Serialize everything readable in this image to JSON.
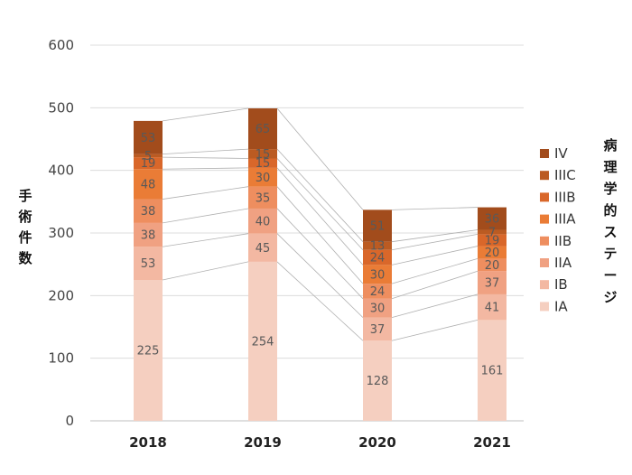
{
  "chart_data": {
    "type": "bar",
    "stacked": true,
    "categories": [
      "2018",
      "2019",
      "2020",
      "2021"
    ],
    "series": [
      {
        "name": "IA",
        "values": [
          225,
          254,
          128,
          161
        ],
        "color": "#F5CFC0"
      },
      {
        "name": "IB",
        "values": [
          53,
          45,
          37,
          41
        ],
        "color": "#F3B8A2"
      },
      {
        "name": "IIA",
        "values": [
          38,
          40,
          30,
          37
        ],
        "color": "#F0A182"
      },
      {
        "name": "IIB",
        "values": [
          38,
          35,
          24,
          20
        ],
        "color": "#EE8E5F"
      },
      {
        "name": "IIIA",
        "values": [
          48,
          30,
          30,
          20
        ],
        "color": "#EA7C36"
      },
      {
        "name": "IIIB",
        "values": [
          19,
          15,
          24,
          19
        ],
        "color": "#D9672A"
      },
      {
        "name": "IIIC",
        "values": [
          5,
          15,
          13,
          7
        ],
        "color": "#BB5B22"
      },
      {
        "name": "IV",
        "values": [
          53,
          65,
          51,
          36
        ],
        "color": "#A24C1C"
      }
    ],
    "yticks": [
      "0",
      "100",
      "200",
      "300",
      "400",
      "500",
      "600"
    ],
    "ylim": [
      0,
      600
    ],
    "ylabel": "手術件数",
    "legend_title": "病理学的ステージ",
    "legend_position": "right",
    "series_lines": true,
    "grid": true
  }
}
